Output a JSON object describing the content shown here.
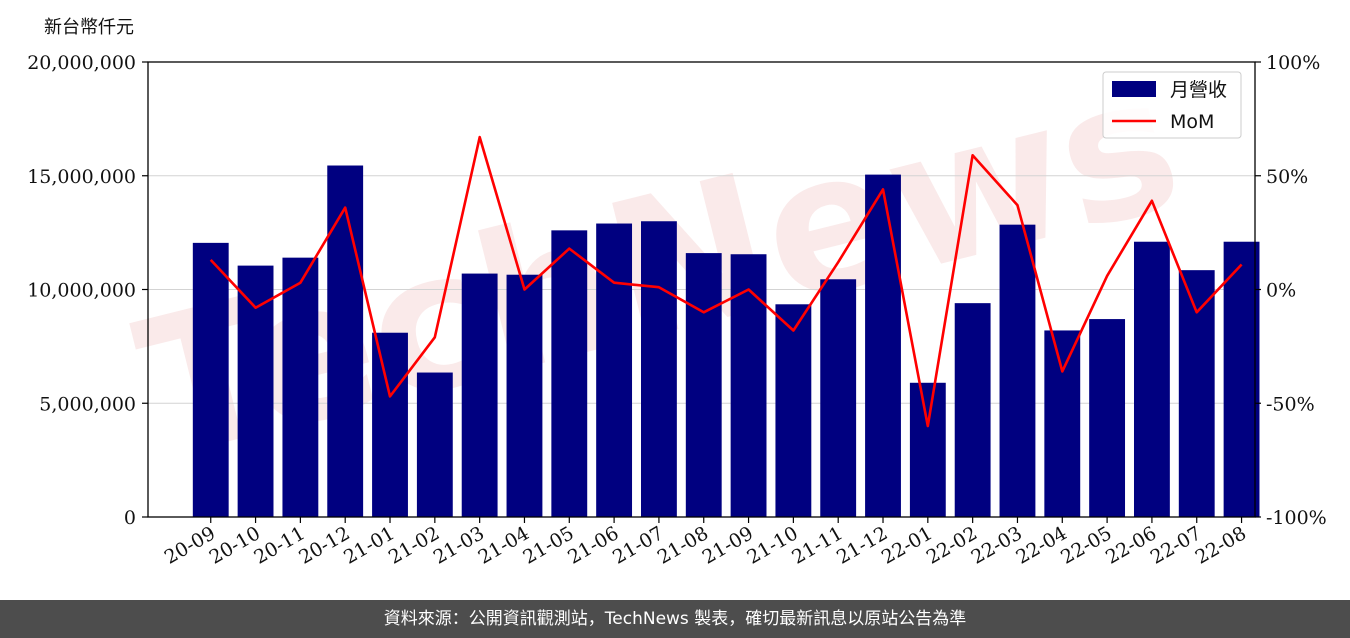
{
  "chart_data": {
    "type": "bar",
    "y_unit_label": "新台幣仟元",
    "categories": [
      "20-09",
      "20-10",
      "20-11",
      "20-12",
      "21-01",
      "21-02",
      "21-03",
      "21-04",
      "21-05",
      "21-06",
      "21-07",
      "21-08",
      "21-09",
      "21-10",
      "21-11",
      "21-12",
      "22-01",
      "22-02",
      "22-03",
      "22-04",
      "22-05",
      "22-06",
      "22-07",
      "22-08"
    ],
    "series": [
      {
        "name": "月營收",
        "type": "bar",
        "axis": "left",
        "color": "#000080",
        "values": [
          12050000,
          11050000,
          11400000,
          15450000,
          8100000,
          6350000,
          10700000,
          10650000,
          12600000,
          12900000,
          13000000,
          11600000,
          11550000,
          9350000,
          10450000,
          15050000,
          5900000,
          9400000,
          12850000,
          8200000,
          8700000,
          12100000,
          10850000,
          12100000
        ]
      },
      {
        "name": "MoM",
        "type": "line",
        "axis": "right",
        "color": "#ff0000",
        "values": [
          13,
          -8,
          3,
          36,
          -47,
          -21,
          67,
          0,
          18,
          3,
          1,
          -10,
          0,
          -18,
          12,
          44,
          -60,
          59,
          37,
          -36,
          6,
          39,
          -10,
          11
        ]
      }
    ],
    "y_left": {
      "min": 0,
      "max": 20000000,
      "ticks": [
        "0",
        "5,000,000",
        "10,000,000",
        "15,000,000",
        "20,000,000"
      ]
    },
    "y_right": {
      "min": -100,
      "max": 100,
      "ticks": [
        "-100%",
        "-50%",
        "0%",
        "50%",
        "100%"
      ]
    },
    "grid": true,
    "legend_position": "top-right"
  },
  "watermark_text": "TechNews",
  "footer_text": "資料來源：公開資訊觀測站，TechNews 製表，確切最新訊息以原站公告為準"
}
